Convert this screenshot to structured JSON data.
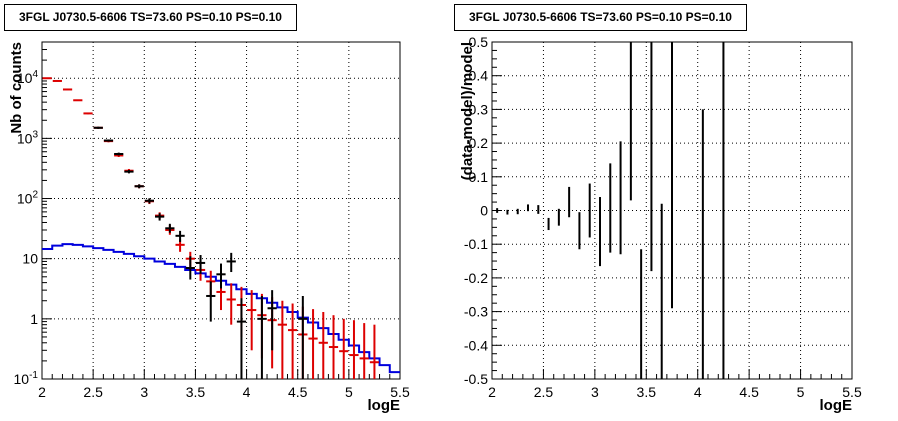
{
  "chart_data": [
    {
      "type": "histogram",
      "title": "3FGL J0730.5-6606 TS=73.60 PS=0.10 PS=0.10",
      "xlabel": "logE",
      "ylabel": "Nb of counts",
      "xlim": [
        2,
        5.5
      ],
      "ylim": [
        0.1,
        40000
      ],
      "yscale": "log",
      "grid": true,
      "x_ticks": [
        "2",
        "2.5",
        "3",
        "3.5",
        "4",
        "4.5",
        "5",
        "5.5"
      ],
      "y_ticks": [
        {
          "value": 0.1,
          "label": "10",
          "exp": "-1"
        },
        {
          "value": 1,
          "label": "1",
          "exp": ""
        },
        {
          "value": 10,
          "label": "10",
          "exp": ""
        },
        {
          "value": 100,
          "label": "10",
          "exp": "2"
        },
        {
          "value": 1000,
          "label": "10",
          "exp": "3"
        },
        {
          "value": 10000,
          "label": "10",
          "exp": "4"
        }
      ],
      "bin_width": 0.1,
      "series": [
        {
          "color": "#0000dd",
          "style": "step",
          "bins_start": 2.0,
          "values": [
            14.5,
            16.5,
            17.5,
            17.0,
            16.0,
            15.0,
            14.0,
            13.0,
            12.0,
            11.0,
            10.0,
            9.0,
            8.2,
            7.3,
            6.5,
            5.7,
            5.0,
            4.3,
            3.7,
            3.1,
            2.6,
            2.2,
            1.85,
            1.55,
            1.3,
            1.05,
            0.87,
            0.7,
            0.56,
            0.45,
            0.36,
            0.28,
            0.22,
            0.17,
            0.13
          ]
        },
        {
          "color": "#dd0000",
          "style": "errorbar",
          "points": [
            {
              "x": 2.05,
              "y": 10000,
              "lo": 9800,
              "hi": 10200
            },
            {
              "x": 2.15,
              "y": 9000,
              "lo": 8800,
              "hi": 9200
            },
            {
              "x": 2.25,
              "y": 6500,
              "lo": 6350,
              "hi": 6650
            },
            {
              "x": 2.35,
              "y": 4300,
              "lo": 4200,
              "hi": 4400
            },
            {
              "x": 2.45,
              "y": 2600,
              "lo": 2520,
              "hi": 2680
            },
            {
              "x": 2.55,
              "y": 1500,
              "lo": 1450,
              "hi": 1550
            },
            {
              "x": 2.65,
              "y": 900,
              "lo": 860,
              "hi": 940
            },
            {
              "x": 2.75,
              "y": 520,
              "lo": 490,
              "hi": 550
            },
            {
              "x": 2.85,
              "y": 290,
              "lo": 270,
              "hi": 310
            },
            {
              "x": 2.95,
              "y": 160,
              "lo": 148,
              "hi": 172
            },
            {
              "x": 3.05,
              "y": 90,
              "lo": 81,
              "hi": 99
            },
            {
              "x": 3.15,
              "y": 52,
              "lo": 45,
              "hi": 59
            },
            {
              "x": 3.25,
              "y": 30,
              "lo": 25,
              "hi": 36
            },
            {
              "x": 3.35,
              "y": 17,
              "lo": 13,
              "hi": 21
            },
            {
              "x": 3.45,
              "y": 10,
              "lo": 7,
              "hi": 13
            },
            {
              "x": 3.55,
              "y": 6.5,
              "lo": 4.3,
              "hi": 9.0
            },
            {
              "x": 3.65,
              "y": 4.2,
              "lo": 2.5,
              "hi": 6.3
            },
            {
              "x": 3.75,
              "y": 2.8,
              "lo": 1.4,
              "hi": 4.5
            },
            {
              "x": 3.85,
              "y": 2.1,
              "lo": 0.8,
              "hi": 3.9
            },
            {
              "x": 3.95,
              "y": 1.7,
              "lo": 0.5,
              "hi": 3.4
            },
            {
              "x": 4.05,
              "y": 1.4,
              "lo": 0.3,
              "hi": 3.0
            },
            {
              "x": 4.15,
              "y": 1.15,
              "lo": 0.22,
              "hi": 2.6
            },
            {
              "x": 4.25,
              "y": 0.95,
              "lo": 0.15,
              "hi": 2.3
            },
            {
              "x": 4.35,
              "y": 0.8,
              "lo": 0.1,
              "hi": 2.0
            },
            {
              "x": 4.45,
              "y": 0.65,
              "lo": 0.1,
              "hi": 1.8
            },
            {
              "x": 4.55,
              "y": 0.55,
              "lo": 0.1,
              "hi": 1.6
            },
            {
              "x": 4.65,
              "y": 0.47,
              "lo": 0.1,
              "hi": 1.45
            },
            {
              "x": 4.75,
              "y": 0.4,
              "lo": 0.1,
              "hi": 1.3
            },
            {
              "x": 4.85,
              "y": 0.34,
              "lo": 0.1,
              "hi": 1.15
            },
            {
              "x": 4.95,
              "y": 0.29,
              "lo": 0.1,
              "hi": 1.0
            },
            {
              "x": 5.05,
              "y": 0.25,
              "lo": 0.1,
              "hi": 0.95
            },
            {
              "x": 5.15,
              "y": 0.22,
              "lo": 0.1,
              "hi": 0.85
            },
            {
              "x": 5.25,
              "y": 0.19,
              "lo": 0.1,
              "hi": 0.8
            }
          ]
        },
        {
          "color": "#000000",
          "style": "errorbar",
          "points": [
            {
              "x": 2.55,
              "y": 1500,
              "lo": 1440,
              "hi": 1560
            },
            {
              "x": 2.65,
              "y": 920,
              "lo": 880,
              "hi": 960
            },
            {
              "x": 2.75,
              "y": 550,
              "lo": 520,
              "hi": 580
            },
            {
              "x": 2.85,
              "y": 280,
              "lo": 262,
              "hi": 298
            },
            {
              "x": 2.95,
              "y": 160,
              "lo": 148,
              "hi": 172
            },
            {
              "x": 3.05,
              "y": 92,
              "lo": 83,
              "hi": 101
            },
            {
              "x": 3.15,
              "y": 50,
              "lo": 43,
              "hi": 57
            },
            {
              "x": 3.25,
              "y": 32,
              "lo": 27,
              "hi": 38
            },
            {
              "x": 3.35,
              "y": 24,
              "lo": 19,
              "hi": 29
            },
            {
              "x": 3.45,
              "y": 7,
              "lo": 4.5,
              "hi": 11
            },
            {
              "x": 3.55,
              "y": 8.5,
              "lo": 5.6,
              "hi": 11.5
            },
            {
              "x": 3.65,
              "y": 2.4,
              "lo": 0.9,
              "hi": 4.2
            },
            {
              "x": 3.75,
              "y": 5.5,
              "lo": 3.2,
              "hi": 8.3
            },
            {
              "x": 3.85,
              "y": 9,
              "lo": 6,
              "hi": 12.5
            },
            {
              "x": 3.95,
              "y": 0.9,
              "lo": 0.1,
              "hi": 2.2
            },
            {
              "x": 4.15,
              "y": 1.0,
              "lo": 0.1,
              "hi": 2.4
            },
            {
              "x": 4.25,
              "y": 1.5,
              "lo": 0.3,
              "hi": 3.0
            },
            {
              "x": 4.55,
              "y": 1.0,
              "lo": 0.1,
              "hi": 2.4
            }
          ]
        }
      ]
    },
    {
      "type": "scatter",
      "title": "3FGL J0730.5-6606 TS=73.60 PS=0.10 PS=0.10",
      "xlabel": "logE",
      "ylabel": "(data-model)/model",
      "xlim": [
        2,
        5.5
      ],
      "ylim": [
        -0.5,
        0.5
      ],
      "grid": true,
      "x_ticks": [
        "2",
        "2.5",
        "3",
        "3.5",
        "4",
        "4.5",
        "5",
        "5.5"
      ],
      "y_ticks": [
        "-0.5",
        "-0.4",
        "-0.3",
        "-0.2",
        "-0.1",
        "0",
        "0.1",
        "0.2",
        "0.3",
        "0.4",
        "0.5"
      ],
      "series": [
        {
          "color": "#000000",
          "style": "errorbar",
          "points": [
            {
              "x": 2.05,
              "y": 0.0,
              "lo": -0.007,
              "hi": 0.007
            },
            {
              "x": 2.15,
              "y": -0.005,
              "lo": -0.012,
              "hi": 0.002
            },
            {
              "x": 2.25,
              "y": -0.003,
              "lo": -0.011,
              "hi": 0.005
            },
            {
              "x": 2.35,
              "y": 0.008,
              "lo": -0.002,
              "hi": 0.018
            },
            {
              "x": 2.45,
              "y": 0.003,
              "lo": -0.01,
              "hi": 0.016
            },
            {
              "x": 2.55,
              "y": -0.04,
              "lo": -0.058,
              "hi": -0.022
            },
            {
              "x": 2.65,
              "y": -0.02,
              "lo": -0.045,
              "hi": 0.005
            },
            {
              "x": 2.75,
              "y": 0.02,
              "lo": -0.02,
              "hi": 0.07
            },
            {
              "x": 2.85,
              "y": -0.06,
              "lo": -0.115,
              "hi": -0.005
            },
            {
              "x": 2.95,
              "y": 0.0,
              "lo": -0.08,
              "hi": 0.08
            },
            {
              "x": 3.05,
              "y": -0.065,
              "lo": -0.165,
              "hi": 0.04
            },
            {
              "x": 3.15,
              "y": 0.005,
              "lo": -0.125,
              "hi": 0.14
            },
            {
              "x": 3.25,
              "y": 0.03,
              "lo": -0.13,
              "hi": 0.205
            },
            {
              "x": 3.35,
              "y": 0.27,
              "lo": 0.03,
              "hi": 0.5
            },
            {
              "x": 3.45,
              "y": -0.375,
              "lo": -0.5,
              "hi": -0.115
            },
            {
              "x": 3.55,
              "y": 0.24,
              "lo": -0.18,
              "hi": 0.5
            },
            {
              "x": 3.65,
              "y": -0.41,
              "lo": -0.5,
              "hi": 0.02
            },
            {
              "x": 3.75,
              "y": 0.33,
              "lo": -0.29,
              "hi": 0.5
            },
            {
              "x": 4.05,
              "y": -0.385,
              "lo": -0.5,
              "hi": 0.3
            },
            {
              "x": 4.25,
              "y": -0.025,
              "lo": -0.5,
              "hi": 0.5
            }
          ]
        }
      ]
    }
  ]
}
